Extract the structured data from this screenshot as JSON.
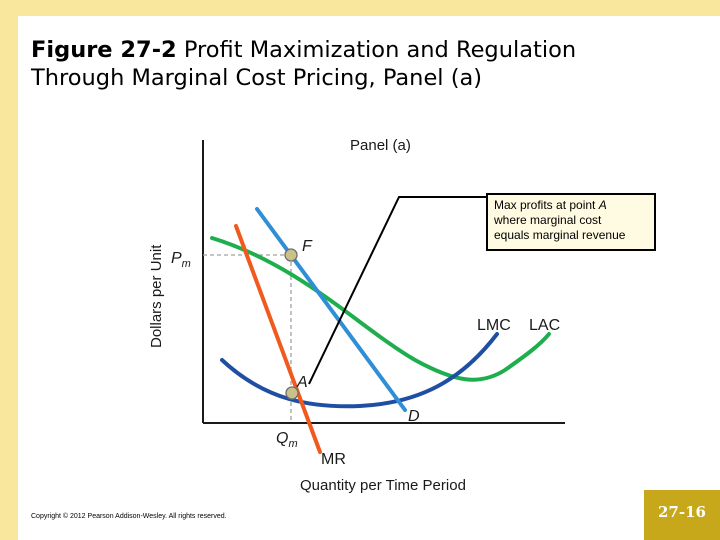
{
  "slide": {
    "title_bold": "Figure 27-2",
    "title_rest_line1": "Profit Maximization and Regulation",
    "title_line2": "Through Marginal Cost Pricing, Panel (a)",
    "copyright": "Copyright © 2012 Pearson Addison-Wesley. All rights reserved.",
    "page_number": "27-16"
  },
  "diagram": {
    "panel_label": "Panel (a)",
    "y_axis_label": "Dollars per Unit",
    "x_axis_label": "Quantity per Time Period",
    "price_label_main": "P",
    "price_label_sub": "m",
    "quantity_label_main": "Q",
    "quantity_label_sub": "m",
    "point_f": "F",
    "point_a": "A",
    "curve_lmc": "LMC",
    "curve_lac": "LAC",
    "curve_d": "D",
    "curve_mr": "MR",
    "callout_line1": "Max profits at point ",
    "callout_point": "A",
    "callout_line2": "where marginal cost",
    "callout_line3": "equals marginal revenue",
    "colors": {
      "demand": "#2f8fd6",
      "marginal_revenue": "#f05a1e",
      "average_cost": "#1fae4e",
      "marginal_cost": "#1f4fa3",
      "point": "#c8c28a",
      "background_band": "#f8e79c",
      "page_badge": "#c7a81a"
    }
  }
}
